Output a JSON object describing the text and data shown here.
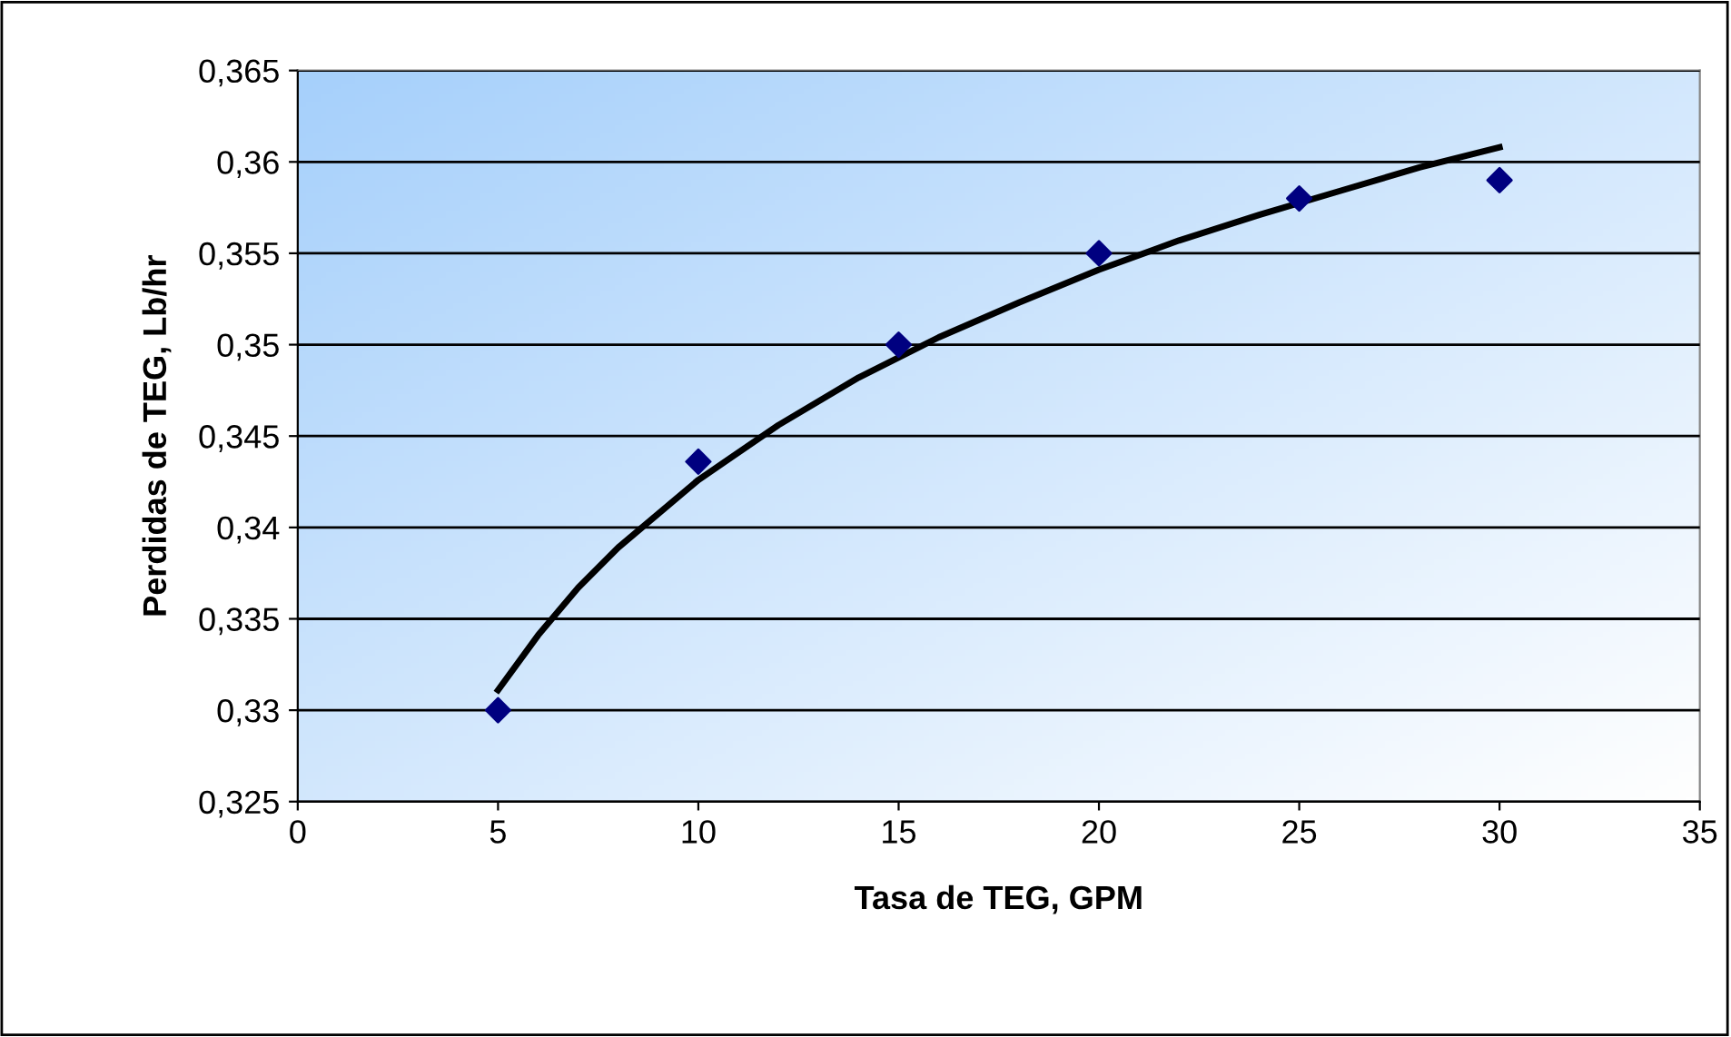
{
  "chart_data": {
    "type": "scatter",
    "xlabel": "Tasa de TEG, GPM",
    "ylabel": "Perdidas de TEG, Lb/hr",
    "xlim": [
      0,
      35
    ],
    "xticks": [
      0,
      5,
      10,
      15,
      20,
      25,
      30,
      35
    ],
    "ylim": [
      0.325,
      0.365
    ],
    "yticks": [
      {
        "value": 0.325,
        "label": "0,325"
      },
      {
        "value": 0.33,
        "label": "0,33"
      },
      {
        "value": 0.335,
        "label": "0,335"
      },
      {
        "value": 0.34,
        "label": "0,34"
      },
      {
        "value": 0.345,
        "label": "0,345"
      },
      {
        "value": 0.35,
        "label": "0,35"
      },
      {
        "value": 0.355,
        "label": "0,355"
      },
      {
        "value": 0.36,
        "label": "0,36"
      },
      {
        "value": 0.365,
        "label": "0,365"
      }
    ],
    "grid": "y",
    "legend": false,
    "series": [
      {
        "color": "#000080",
        "marker": "diamond",
        "x": [
          5,
          10,
          15,
          20,
          25,
          30
        ],
        "values": [
          0.33,
          0.3436,
          0.35,
          0.355,
          0.358,
          0.359
        ]
      },
      {
        "type": "line",
        "color": "#000000",
        "marker": "none",
        "line_style": "solid",
        "x": [
          5,
          6,
          7,
          8,
          10,
          12,
          14,
          16,
          18,
          20,
          22,
          24,
          26,
          28,
          30
        ],
        "values": [
          0.3311,
          0.3341,
          0.3367,
          0.3389,
          0.3426,
          0.3456,
          0.3482,
          0.3504,
          0.3523,
          0.3541,
          0.3557,
          0.3571,
          0.3584,
          0.3597,
          0.3608
        ]
      }
    ]
  }
}
